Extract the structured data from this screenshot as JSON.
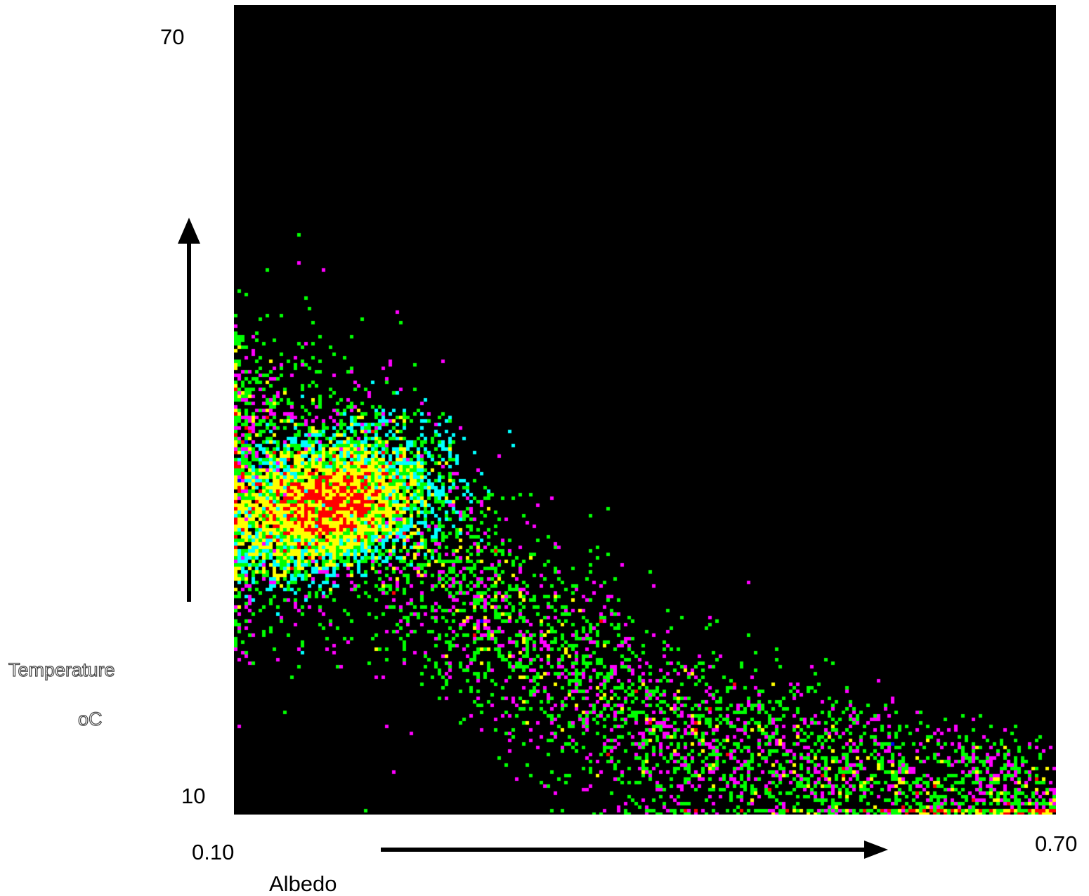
{
  "chart_data": {
    "type": "heatmap",
    "xlabel": "Albedo",
    "ylabel": "Temperature",
    "ylabel_unit": "oC",
    "xlim": [
      0.1,
      0.7
    ],
    "ylim": [
      10,
      70
    ],
    "x_tick_labels": [
      "0.10",
      "0.70"
    ],
    "y_tick_labels": [
      "10",
      "70"
    ],
    "colormap": [
      "#000000",
      "#ff00ff",
      "#0000ff",
      "#00ffff",
      "#00ff00",
      "#ffff00",
      "#ff0000"
    ],
    "density_peak": {
      "albedo": 0.17,
      "temperature": 33
    },
    "description_points": [
      {
        "albedo": 0.1,
        "temperature": 35
      },
      {
        "albedo": 0.2,
        "temperature": 33
      },
      {
        "albedo": 0.3,
        "temperature": 24
      },
      {
        "albedo": 0.4,
        "temperature": 17
      },
      {
        "albedo": 0.5,
        "temperature": 14
      },
      {
        "albedo": 0.6,
        "temperature": 12
      },
      {
        "albedo": 0.7,
        "temperature": 11
      }
    ],
    "background": "#000000"
  }
}
